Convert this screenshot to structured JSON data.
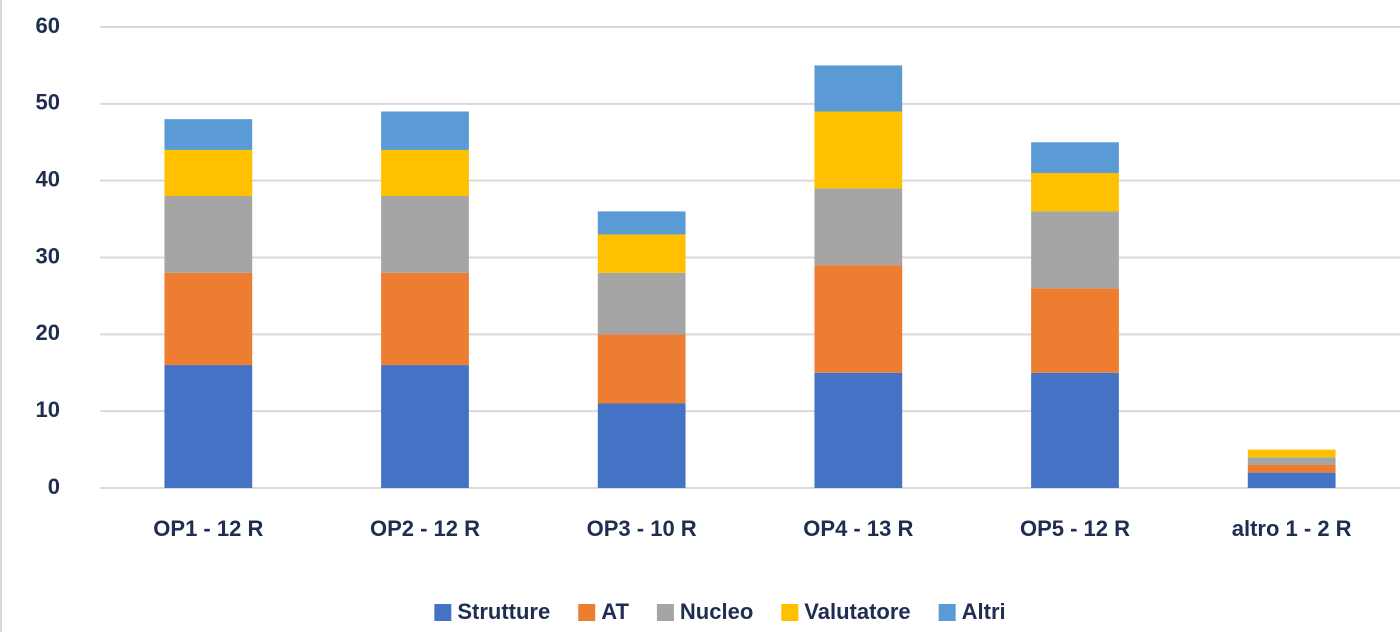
{
  "chart_data": {
    "type": "stacked_bar",
    "categories": [
      "OP1 - 12 R",
      "OP2 - 12 R",
      "OP3 - 10 R",
      "OP4 - 13 R",
      "OP5 - 12 R",
      "altro 1 - 2 R"
    ],
    "series": [
      {
        "name": "Strutture",
        "color": "#4472c4",
        "values": [
          16,
          16,
          11,
          15,
          15,
          2
        ]
      },
      {
        "name": "AT",
        "color": "#ed7d31",
        "values": [
          12,
          12,
          9,
          14,
          11,
          1
        ]
      },
      {
        "name": "Nucleo",
        "color": "#a5a5a5",
        "values": [
          10,
          10,
          8,
          10,
          10,
          1
        ]
      },
      {
        "name": "Valutatore",
        "color": "#ffc000",
        "values": [
          6,
          6,
          5,
          10,
          5,
          1
        ]
      },
      {
        "name": "Altri",
        "color": "#5b9bd5",
        "values": [
          4,
          5,
          3,
          6,
          4,
          0
        ]
      }
    ],
    "ylim": [
      0,
      60
    ],
    "yticks": [
      0,
      10,
      20,
      30,
      40,
      50,
      60
    ],
    "grid": true,
    "legend": "bottom"
  }
}
